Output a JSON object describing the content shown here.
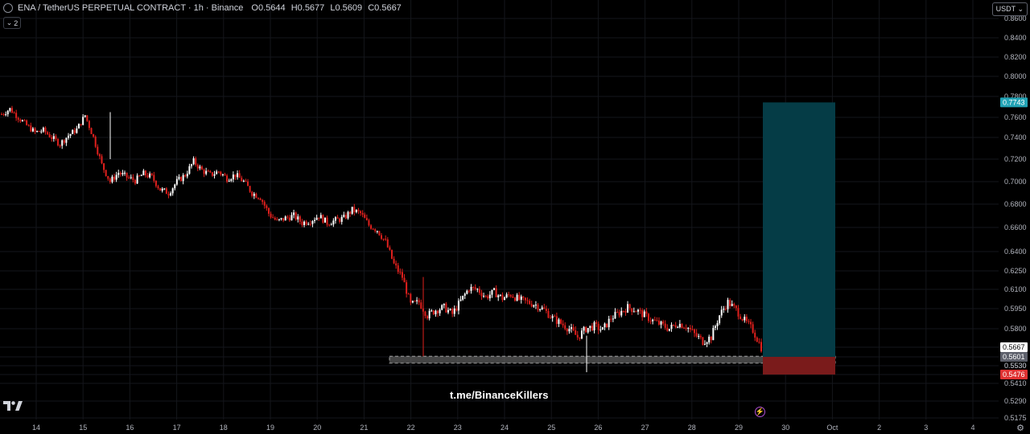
{
  "header": {
    "symbol": "ENA / TetherUS PERPETUAL CONTRACT · 1h · Binance",
    "o_label": "O",
    "o": "0.5644",
    "h_label": "H",
    "h": "0.5677",
    "l_label": "L",
    "l": "0.5609",
    "c_label": "C",
    "c": "0.5667",
    "indicator_count": "2"
  },
  "currency": "USDT",
  "watermark": "t.me/BinanceKillers",
  "colors": {
    "up": "#ffffff",
    "down": "#e0201d",
    "target": "#053c46",
    "stop": "#7a1b1b",
    "last_tag": "#ffffff",
    "target_tag": "#22a3b5",
    "stop_tag": "#e03232",
    "entry_tag": "#5d606b"
  },
  "chart_data": {
    "type": "candlestick",
    "y_ticks": [
      "0.8600",
      "0.8400",
      "0.8200",
      "0.8000",
      "0.7800",
      "0.7600",
      "0.7400",
      "0.7200",
      "0.7000",
      "0.6800",
      "0.6600",
      "0.6400",
      "0.6250",
      "0.6100",
      "0.5950",
      "0.5800",
      "0.5667",
      "0.5601",
      "0.5530",
      "0.5476",
      "0.5410",
      "0.5290",
      "0.5175"
    ],
    "x_ticks": [
      "14",
      "15",
      "16",
      "17",
      "18",
      "19",
      "20",
      "21",
      "22",
      "23",
      "24",
      "25",
      "26",
      "27",
      "28",
      "29",
      "30",
      "Oct",
      "2",
      "3",
      "4"
    ],
    "price_tags": {
      "last": "0.5667",
      "entry": "0.5601",
      "target": "0.7743",
      "stop": "0.5476"
    },
    "position": {
      "entry": 0.5601,
      "target": 0.7743,
      "stop": 0.5476
    },
    "support_zone": [
      0.555,
      0.5605
    ],
    "price_path": [
      0.763,
      0.768,
      0.76,
      0.752,
      0.745,
      0.747,
      0.74,
      0.734,
      0.742,
      0.748,
      0.762,
      0.74,
      0.715,
      0.7,
      0.708,
      0.704,
      0.701,
      0.707,
      0.704,
      0.693,
      0.69,
      0.7,
      0.706,
      0.718,
      0.71,
      0.706,
      0.709,
      0.703,
      0.706,
      0.7,
      0.69,
      0.686,
      0.672,
      0.665,
      0.668,
      0.67,
      0.664,
      0.666,
      0.67,
      0.664,
      0.666,
      0.668,
      0.675,
      0.672,
      0.662,
      0.658,
      0.648,
      0.63,
      0.62,
      0.598,
      0.6,
      0.59,
      0.594,
      0.596,
      0.591,
      0.601,
      0.611,
      0.61,
      0.604,
      0.608,
      0.603,
      0.606,
      0.602,
      0.6,
      0.598,
      0.594,
      0.588,
      0.584,
      0.58,
      0.574,
      0.58,
      0.582,
      0.579,
      0.588,
      0.592,
      0.596,
      0.594,
      0.59,
      0.586,
      0.583,
      0.58,
      0.584,
      0.582,
      0.576,
      0.571,
      0.574,
      0.59,
      0.6,
      0.594,
      0.586,
      0.579,
      0.5667
    ]
  }
}
